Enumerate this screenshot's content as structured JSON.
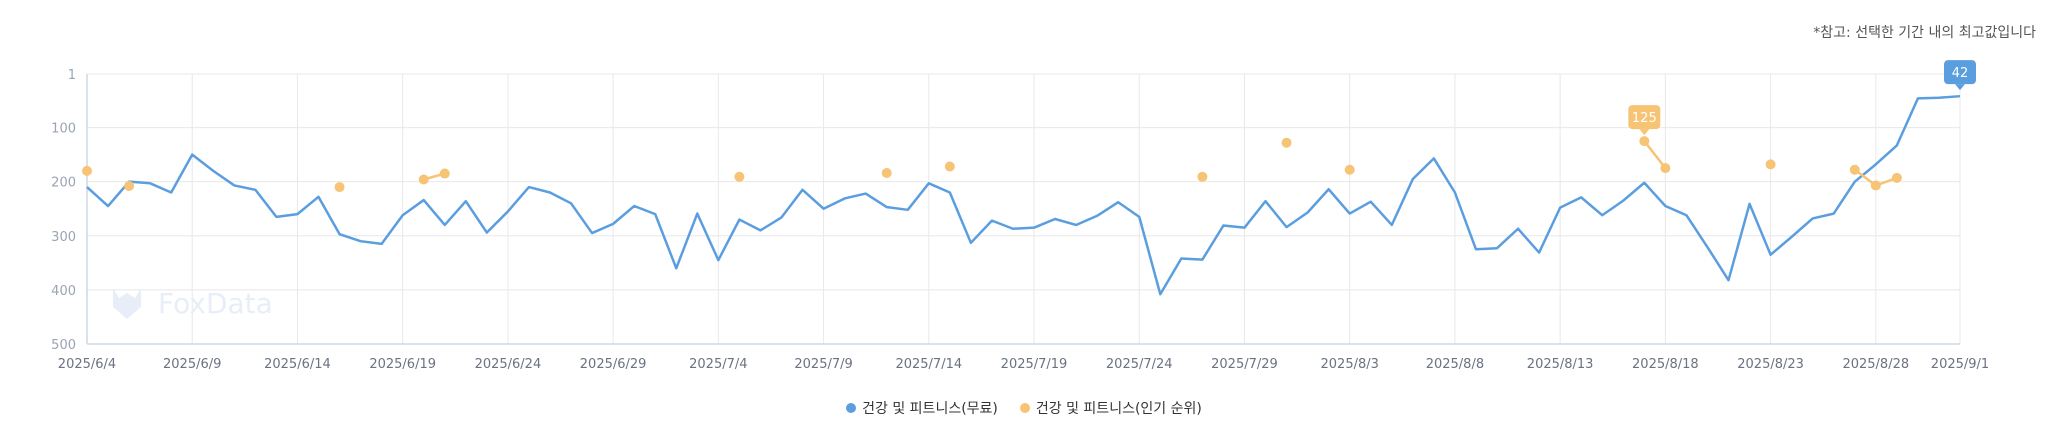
{
  "note": "*참고: 선택한 기간 내의 최고값입니다",
  "watermark": "FoxData",
  "colors": {
    "blue": "#5b9ee0",
    "orange": "#f7c374",
    "grid": "#e8e8e8",
    "axis": "#cfd8e3"
  },
  "chart_data": {
    "type": "line",
    "y_inverted": true,
    "ylim": [
      1,
      500
    ],
    "y_ticks": [
      "1",
      "100",
      "200",
      "300",
      "400",
      "500"
    ],
    "x_tick_labels": [
      "2025/6/4",
      "2025/6/9",
      "2025/6/14",
      "2025/6/19",
      "2025/6/24",
      "2025/6/29",
      "2025/7/4",
      "2025/7/9",
      "2025/7/14",
      "2025/7/19",
      "2025/7/24",
      "2025/7/29",
      "2025/8/3",
      "2025/8/8",
      "2025/8/13",
      "2025/8/18",
      "2025/8/23",
      "2025/8/28",
      "2025/9/1"
    ],
    "series": [
      {
        "name": "건강 및 피트니스(무료)",
        "color": "#5b9ee0",
        "start": "2025-06-04",
        "values": [
          210,
          245,
          200,
          203,
          220,
          150,
          180,
          207,
          215,
          265,
          260,
          228,
          297,
          310,
          315,
          262,
          234,
          280,
          236,
          294,
          255,
          210,
          220,
          240,
          295,
          278,
          245,
          260,
          360,
          259,
          345,
          270,
          290,
          266,
          215,
          250,
          231,
          222,
          247,
          252,
          203,
          220,
          313,
          272,
          287,
          285,
          269,
          280,
          263,
          238,
          265,
          408,
          342,
          344,
          281,
          285,
          236,
          284,
          257,
          214,
          259,
          237,
          280,
          195,
          157,
          220,
          325,
          323,
          287,
          331,
          248,
          229,
          262,
          235,
          202,
          245,
          262,
          321,
          382,
          241,
          335,
          302,
          268,
          259,
          200,
          168,
          133,
          46,
          45,
          42
        ]
      },
      {
        "name": "건강 및 피트니스(인기 순위)",
        "color": "#f7c374",
        "start": "2025-06-04",
        "values": [
          180,
          null,
          208,
          null,
          null,
          null,
          null,
          null,
          null,
          null,
          null,
          null,
          210,
          null,
          null,
          null,
          196,
          185,
          null,
          null,
          null,
          null,
          null,
          null,
          null,
          null,
          null,
          null,
          null,
          null,
          null,
          191,
          null,
          null,
          null,
          null,
          null,
          null,
          184,
          null,
          null,
          172,
          null,
          null,
          null,
          null,
          null,
          null,
          null,
          null,
          null,
          null,
          null,
          191,
          null,
          null,
          null,
          128,
          null,
          null,
          178,
          null,
          null,
          null,
          null,
          null,
          null,
          null,
          null,
          null,
          null,
          null,
          null,
          null,
          125,
          175,
          null,
          null,
          null,
          null,
          168,
          null,
          null,
          null,
          178,
          207,
          193,
          null,
          null,
          null
        ]
      }
    ],
    "callouts": [
      {
        "series": 1,
        "index": 74,
        "label": "125"
      },
      {
        "series": 0,
        "index": 89,
        "label": "42"
      }
    ]
  }
}
